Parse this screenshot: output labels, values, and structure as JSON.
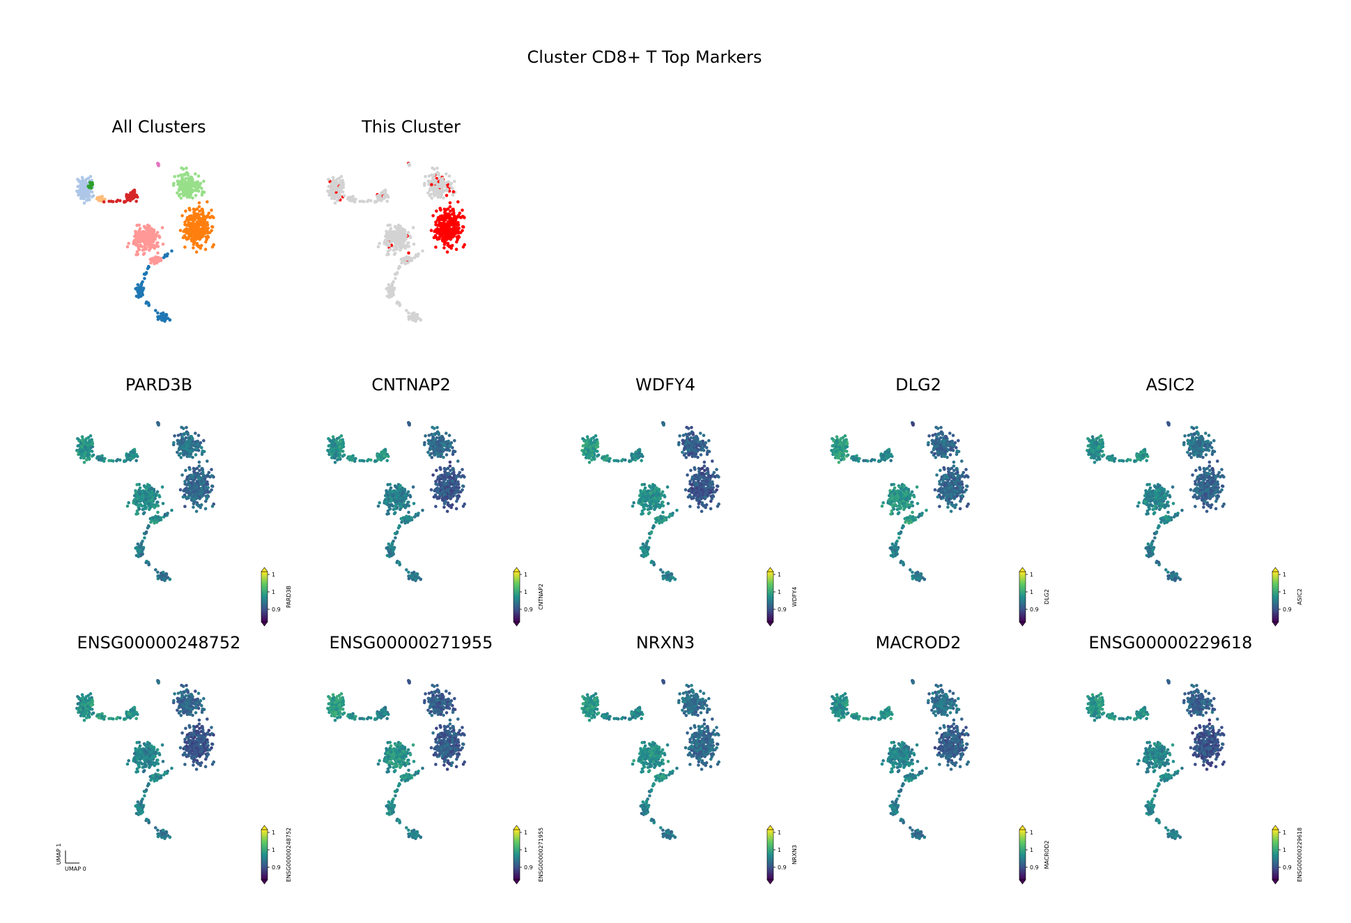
{
  "figure": {
    "title": "Cluster CD8+ T Top Markers"
  },
  "colormap": [
    "#440154",
    "#3b528b",
    "#21918c",
    "#5ec962",
    "#fde725"
  ],
  "colors": {
    "highlight": "#ff0000",
    "background_cells": "#d3d3d3"
  },
  "chart_data": [
    {
      "type": "scatter",
      "panel": "overview",
      "title": "All Clusters",
      "clusters": [
        {
          "color": "#aec7e8"
        },
        {
          "color": "#2ca02c"
        },
        {
          "color": "#ffbb78"
        },
        {
          "color": "#d62728"
        },
        {
          "color": "#98df8a"
        },
        {
          "color": "#ff7f0e"
        },
        {
          "color": "#ff9896"
        },
        {
          "color": "#1f77b4"
        },
        {
          "color": "#e377c2"
        }
      ]
    },
    {
      "type": "scatter",
      "panel": "highlight",
      "title": "This Cluster"
    },
    {
      "type": "scatter",
      "panel": "expression",
      "title": "PARD3B",
      "colorbar": {
        "label": "PARD3B",
        "ticks": [
          "1",
          "1",
          "0.9"
        ]
      }
    },
    {
      "type": "scatter",
      "panel": "expression",
      "title": "CNTNAP2",
      "colorbar": {
        "label": "CNTNAP2",
        "ticks": [
          "1",
          "1",
          "0.9"
        ]
      }
    },
    {
      "type": "scatter",
      "panel": "expression",
      "title": "WDFY4",
      "colorbar": {
        "label": "WDFY4",
        "ticks": [
          "1",
          "1",
          "0.9"
        ]
      }
    },
    {
      "type": "scatter",
      "panel": "expression",
      "title": "DLG2",
      "colorbar": {
        "label": "DLG2",
        "ticks": [
          "1",
          "1",
          "0.9"
        ]
      }
    },
    {
      "type": "scatter",
      "panel": "expression",
      "title": "ASIC2",
      "colorbar": {
        "label": "ASIC2",
        "ticks": [
          "1",
          "1",
          "0.9"
        ]
      }
    },
    {
      "type": "scatter",
      "panel": "expression",
      "title": "ENSG00000248752",
      "colorbar": {
        "label": "ENSG00000248752",
        "ticks": [
          "1",
          "1",
          "0.9"
        ]
      }
    },
    {
      "type": "scatter",
      "panel": "expression",
      "title": "ENSG00000271955",
      "colorbar": {
        "label": "ENSG00000271955",
        "ticks": [
          "1",
          "1",
          "0.9"
        ]
      }
    },
    {
      "type": "scatter",
      "panel": "expression",
      "title": "NRXN3",
      "colorbar": {
        "label": "NRXN3",
        "ticks": [
          "1",
          "1",
          "0.9"
        ]
      }
    },
    {
      "type": "scatter",
      "panel": "expression",
      "title": "MACROD2",
      "colorbar": {
        "label": "MACROD2",
        "ticks": [
          "1",
          "1",
          "0.9"
        ]
      }
    },
    {
      "type": "scatter",
      "panel": "expression",
      "title": "ENSG00000229618",
      "colorbar": {
        "label": "ENSG00000229618",
        "ticks": [
          "1",
          "1",
          "0.9"
        ]
      }
    }
  ],
  "axis_labels": {
    "x": "UMAP 0",
    "y": "UMAP 1"
  }
}
